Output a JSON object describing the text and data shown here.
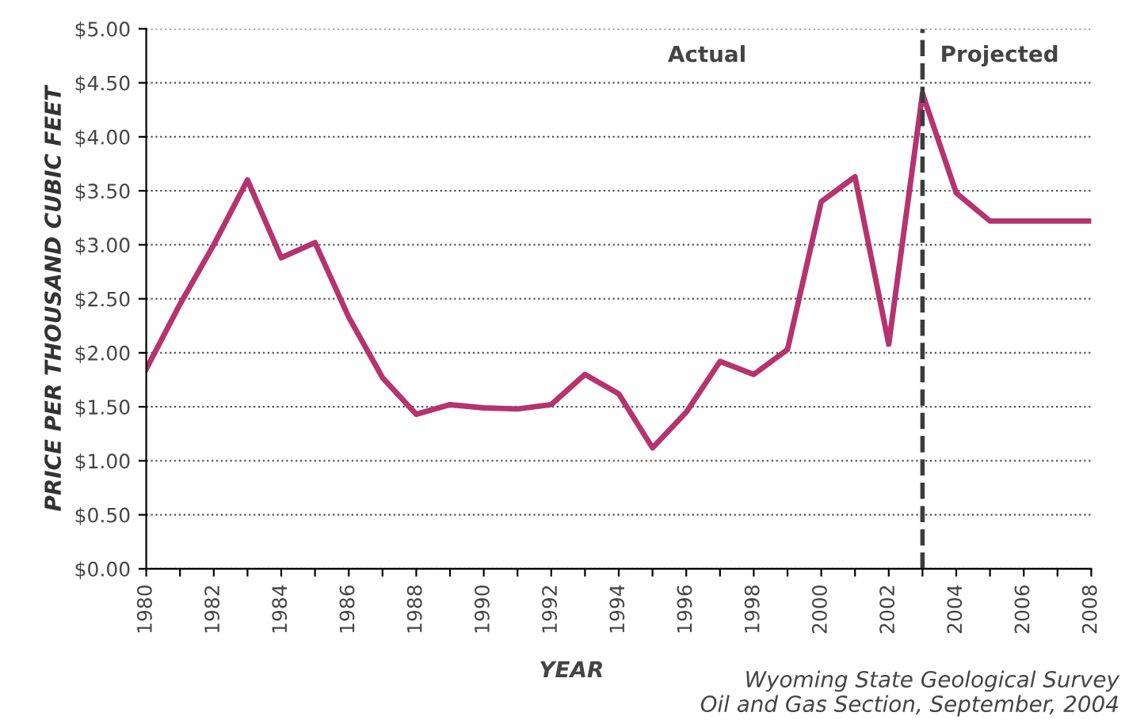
{
  "chart_data": {
    "type": "line",
    "xlabel": "YEAR",
    "ylabel": "PRICE PER THOUSAND CUBIC FEET",
    "x": [
      1980,
      1981,
      1982,
      1983,
      1984,
      1985,
      1986,
      1987,
      1988,
      1989,
      1990,
      1991,
      1992,
      1993,
      1994,
      1995,
      1996,
      1997,
      1998,
      1999,
      2000,
      2001,
      2002,
      2003,
      2004,
      2005,
      2006,
      2007,
      2008
    ],
    "series": [
      {
        "color": "#b5336e",
        "values": [
          1.85,
          2.45,
          3.0,
          3.6,
          2.88,
          3.02,
          2.33,
          1.77,
          1.43,
          1.52,
          1.49,
          1.48,
          1.52,
          1.8,
          1.62,
          1.12,
          1.45,
          1.92,
          1.8,
          2.03,
          3.4,
          3.63,
          2.08,
          4.4,
          3.48,
          3.22,
          3.22,
          3.22,
          3.22
        ]
      }
    ],
    "xlim": [
      1980,
      2008
    ],
    "xticks": [
      1980,
      {
        "value": 1981,
        "label": null
      },
      1982,
      {
        "value": 1983,
        "label": null
      },
      1984,
      {
        "value": 1985,
        "label": null
      },
      1986,
      {
        "value": 1987,
        "label": null
      },
      1988,
      {
        "value": 1989,
        "label": null
      },
      1990,
      {
        "value": 1991,
        "label": null
      },
      1992,
      {
        "value": 1993,
        "label": null
      },
      1994,
      {
        "value": 1995,
        "label": null
      },
      1996,
      {
        "value": 1997,
        "label": null
      },
      1998,
      {
        "value": 1999,
        "label": null
      },
      2000,
      {
        "value": 2001,
        "label": null
      },
      2002,
      {
        "value": 2003,
        "label": null
      },
      2004,
      {
        "value": 2005,
        "label": null
      },
      2006,
      {
        "value": 2007,
        "label": null
      },
      2008
    ],
    "ylim": [
      0,
      5
    ],
    "yticks": [
      {
        "value": 0,
        "label": "$0.00"
      },
      {
        "value": 0.5,
        "label": "$0.50"
      },
      {
        "value": 1,
        "label": "$1.00"
      },
      {
        "value": 1.5,
        "label": "$1.50"
      },
      {
        "value": 2,
        "label": "$2.00"
      },
      {
        "value": 2.5,
        "label": "$2.50"
      },
      {
        "value": 3,
        "label": "$3.00"
      },
      {
        "value": 3.5,
        "label": "$3.50"
      },
      {
        "value": 4,
        "label": "$4.00"
      },
      {
        "value": 4.5,
        "label": "$4.50"
      },
      {
        "value": 5,
        "label": "$5.00"
      }
    ],
    "grid": "y",
    "marker": "none",
    "line_style": "solid",
    "legend": false,
    "ref_lines": [
      {
        "axis": "x",
        "value": 2003,
        "color": "#3c3c3c",
        "line_style": "dashed"
      }
    ],
    "annotations": [
      "Actual",
      "Projected",
      "Wyoming State Geological Survey\nOil and Gas Section, September, 2004"
    ]
  }
}
